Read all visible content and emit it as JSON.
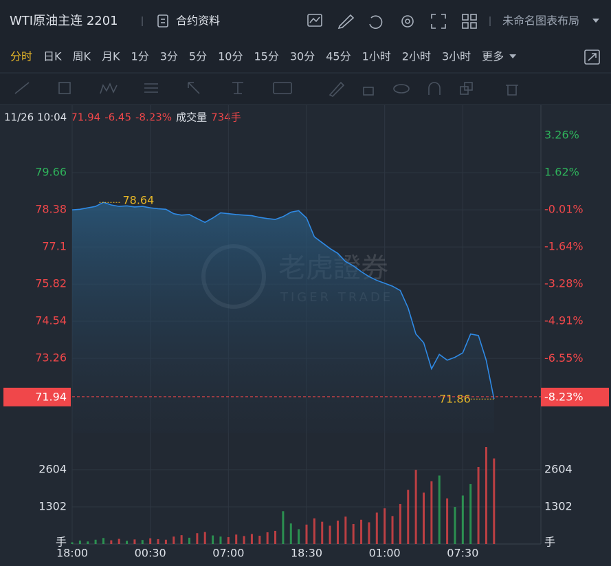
{
  "header": {
    "title": "WTI原油主连 2201",
    "contract_info": "合约资料",
    "layout": "未命名图表布局"
  },
  "timeframes": [
    "分时",
    "日K",
    "周K",
    "月K",
    "1分",
    "3分",
    "5分",
    "10分",
    "15分",
    "30分",
    "45分",
    "1小时",
    "2小时",
    "3小时",
    "更多"
  ],
  "chart_data": {
    "type": "line",
    "last_time": "11/26 10:04",
    "last_price": 71.94,
    "change": -6.45,
    "last_pct": {
      "value": -8.23,
      "label": "-8.23%"
    },
    "volume_label": "成交量",
    "last_volume": {
      "value": 734,
      "label": "734手"
    },
    "watermark": {
      "name": "老虎證券",
      "sub": "TIGER TRADE"
    },
    "price": {
      "color": "#2f8ae5",
      "values": [
        78.38,
        78.4,
        78.45,
        78.5,
        78.64,
        78.55,
        78.5,
        78.52,
        78.48,
        78.5,
        78.45,
        78.42,
        78.4,
        78.25,
        78.2,
        78.22,
        78.08,
        77.95,
        78.1,
        78.28,
        78.25,
        78.22,
        78.2,
        78.18,
        78.12,
        78.08,
        78.05,
        78.15,
        78.3,
        78.35,
        78.1,
        77.45,
        77.25,
        77.05,
        76.88,
        76.6,
        76.45,
        76.25,
        76.08,
        75.95,
        75.85,
        75.75,
        75.6,
        75.0,
        74.1,
        73.8,
        72.9,
        73.4,
        73.2,
        73.3,
        73.45,
        74.1,
        74.05,
        73.2,
        71.86
      ]
    },
    "volume": {
      "values": [
        60,
        120,
        90,
        150,
        210,
        130,
        180,
        110,
        160,
        140,
        200,
        170,
        150,
        260,
        310,
        220,
        380,
        420,
        300,
        260,
        240,
        330,
        280,
        350,
        290,
        410,
        460,
        1150,
        720,
        520,
        680,
        900,
        780,
        640,
        820,
        960,
        700,
        850,
        760,
        1100,
        1250,
        980,
        1400,
        1900,
        2600,
        1800,
        2200,
        2400,
        1600,
        1300,
        1700,
        2100,
        2700,
        3400,
        3000
      ]
    },
    "up_color": "#2fb35b",
    "down_color": "#f0474a",
    "xlim": [
      0,
      60
    ],
    "xticks": [
      {
        "value": 0,
        "label": "18:00"
      },
      {
        "value": 10,
        "label": "00:30"
      },
      {
        "value": 20,
        "label": "07:00"
      },
      {
        "value": 30,
        "label": "18:30"
      },
      {
        "value": 40,
        "label": "01:00"
      },
      {
        "value": 50,
        "label": "07:30"
      }
    ],
    "ylim": [
      70.68,
      81.11
    ],
    "yticks": [
      79.66,
      78.38,
      77.1,
      75.82,
      74.54,
      73.26
    ],
    "y2lim": [
      -9.835,
      3.465
    ],
    "y2ticks": [
      {
        "value": 3.26,
        "label": "3.26%"
      },
      {
        "value": 1.62,
        "label": "1.62%"
      },
      {
        "value": -0.01,
        "label": "-0.01%"
      },
      {
        "value": -1.64,
        "label": "-1.64%"
      },
      {
        "value": -3.28,
        "label": "-3.28%"
      },
      {
        "value": -4.91,
        "label": "-4.91%"
      },
      {
        "value": -6.55,
        "label": "-6.55%"
      }
    ],
    "volume_ylim": [
      0,
      3641
    ],
    "volume_ticks": [
      2604,
      1302
    ],
    "volume_unit": "手",
    "grid": true
  }
}
